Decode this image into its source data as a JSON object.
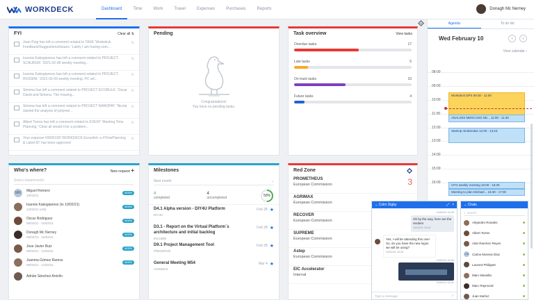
{
  "header": {
    "logo_text": "WORKDECK",
    "nav": [
      {
        "label": "Dashboard",
        "active": true
      },
      {
        "label": "Time",
        "active": false
      },
      {
        "label": "Work",
        "active": false
      },
      {
        "label": "Travel",
        "active": false
      },
      {
        "label": "Expenses",
        "active": false
      },
      {
        "label": "Purchases",
        "active": false
      },
      {
        "label": "Reports",
        "active": false
      }
    ],
    "user_name": "Donagh Mc Nerney"
  },
  "fyi": {
    "title": "FYI",
    "action": "Clear all ⇅",
    "items": [
      "Joan Puig has left a comment related to TASK 'Workdeck Feedback/Suggestions/Issues: 'Lately I am having som...",
      "Ioannis Kakogiannos has left a comment related to PROJECT SCALBIUR: '2021-02-08 weekly meeting...",
      "Ioannis Kakogiannos has left a comment related to PROJECT ROSSINI: '2021-02-09 weekly meeting. PC wil...",
      "Simona has left a comment related to PROJECT ECOBULK: 'Oscar David and Simona. The missing...",
      "Simona has left a comment related to PROJECT NANOPAT: 'Nicola started the analysis of polymer...",
      "Albert Torres has left a comment related to EVENT 'Meeting Time Planning: 'Clear all would it be a problem...",
      "Your expense #0000128 'WORKDECK Ecosolid+ a #TimePlanning & Label-ID' has been approved"
    ]
  },
  "pending": {
    "title": "Pending",
    "message_line1": "Congratulations!",
    "message_line2": "You have no pending tasks."
  },
  "tasks": {
    "title": "Task overview",
    "action": "View tasks",
    "rows": [
      {
        "label": "Overdue tasks",
        "count": "17",
        "fill": 0.55,
        "color": "#e53935"
      },
      {
        "label": "Late tasks",
        "count": "5",
        "fill": 0.12,
        "color": "#f9a825"
      },
      {
        "label": "On track tasks",
        "count": "10",
        "fill": 0.44,
        "color": "#7e3fbf"
      },
      {
        "label": "Future tasks",
        "count": "4",
        "fill": 0.09,
        "color": "#1e63d6"
      }
    ]
  },
  "whos": {
    "title": "Who's where?",
    "action": "New request",
    "search_placeholder": "Select departments",
    "people": [
      {
        "name": "Miguel Romero",
        "date": "10/02/21",
        "badge": "MR",
        "color": "#b7c6d9",
        "tag": "WORK"
      },
      {
        "name": "Ioannis Kakogiannos (to 10/02/21)",
        "date": "12/02/21 (AM)",
        "badge": "",
        "color": "#8a6e5a",
        "tag": "WORK"
      },
      {
        "name": "Oscar Rodriguez",
        "date": "05/02/21 - 10/02/21",
        "badge": "",
        "color": "#6b4c3b",
        "tag": "WORK"
      },
      {
        "name": "Donagh Mc Nerney",
        "date": "09/02/21 - 10/02/21",
        "badge": "",
        "color": "#3a2d28",
        "tag": "WORK"
      },
      {
        "name": "Jose Javier Ruiz",
        "date": "08/02/21 - 12/02/21",
        "badge": "",
        "color": "#7a5a48",
        "tag": "WORK"
      },
      {
        "name": "Juanma Gómez Ramos",
        "date": "09/02/21 - 12/02/21",
        "badge": "",
        "color": "#8d6f5e",
        "tag": "WORK"
      },
      {
        "name": "Adrián Sánchez Antolín",
        "date": "",
        "badge": "",
        "color": "#6e5b50",
        "tag": ""
      }
    ]
  },
  "milestones": {
    "title": "Milestones",
    "select_value": "Next month",
    "completed_num": "4",
    "completed_lbl": "completed",
    "uncompleted_num": "4",
    "uncompleted_lbl": "uncompleted",
    "percent": "50%",
    "percent_value": 0.5,
    "items": [
      {
        "title": "D4.1 Alpha version - DIY4U Platform",
        "sub": "DIY4U",
        "date": "Feb 28"
      },
      {
        "title": "D3.1 - Report on the Virtual Platform´s architecture and initial backlog",
        "sub": "INCUBIB",
        "date": "Feb 28"
      },
      {
        "title": "D9.1 Project Management Tool",
        "sub": "PRESERVE",
        "date": "Feb 28"
      },
      {
        "title": "General Meeting M54",
        "sub": "AGRIMAX",
        "date": "Mar 4"
      }
    ]
  },
  "redzone": {
    "title": "Red Zone",
    "items": [
      {
        "name": "PROMETHEUS",
        "sub": "European Commission",
        "count": "3"
      },
      {
        "name": "AGRIMAX",
        "sub": "European Commission",
        "count": ""
      },
      {
        "name": "RECOVER",
        "sub": "European Commission",
        "count": ""
      },
      {
        "name": "SUPREME",
        "sub": "European Commission",
        "count": ""
      },
      {
        "name": "Astep",
        "sub": "European Commission",
        "count": ""
      },
      {
        "name": "EIC Accelerator",
        "sub": "Internal",
        "count": ""
      }
    ]
  },
  "agenda": {
    "tab_agenda": "Agenda",
    "tab_todo": "To do list",
    "date": "Wed February 10",
    "view_calendar": "View calendar ›",
    "hours": [
      "08:00",
      "09:00",
      "10:00",
      "11:00",
      "12:00",
      "13:00",
      "14:00",
      "15:00",
      "16:00"
    ],
    "events": [
      {
        "label": "Workdeck DPS  09:30 - 11:00",
        "color": "#fcd45b"
      },
      {
        "label": "ANALISIS MERCADO NE...  11:00 - 11:30",
        "color": "#bfe0f6"
      },
      {
        "label": "StartUp Akobendas  12:00 - 13:15",
        "color": "#bfe0f6"
      },
      {
        "label": "CFO weekly meeting  16:00 - 16:30",
        "color": "#bfe0f6"
      },
      {
        "label": "Meeting to plan Michael...  16:30 - 17:00",
        "color": "#bfe0f6"
      }
    ]
  },
  "chat": {
    "name": "Colm Digby",
    "placeholder": "Type a message",
    "messages": [
      {
        "time": "10/02/21 10:40",
        "text": ""
      },
      {
        "time": "10/02/21 10:40",
        "text": "Oh by the way, here are the renders"
      },
      {
        "time": "10/02/21 10:40",
        "text": "Yes, I will be attending this one! So, do you have the new logos we will be using?"
      },
      {
        "time": "10/02/21 10:40",
        "text": ""
      },
      {
        "time": "10/02/21 10:41",
        "text": ""
      }
    ]
  },
  "chats": {
    "title": "Chats",
    "search_placeholder": "Search",
    "people": [
      {
        "name": "Alejandro Rosales",
        "badge": "",
        "color": "#8a6e5a"
      },
      {
        "name": "Albert Torres",
        "badge": "",
        "color": "#6b4c3b"
      },
      {
        "name": "Aldo Ramírez Reyes",
        "badge": "",
        "color": "#7a5a48"
      },
      {
        "name": "Carlos Moreira Díaz",
        "badge": "CM",
        "color": "#b7c6d9"
      },
      {
        "name": "Laurent Philippet",
        "badge": "",
        "color": "#5c4a40"
      },
      {
        "name": "Marc Mansilla",
        "badge": "",
        "color": "#8d6f5e"
      },
      {
        "name": "Marc Raymond",
        "badge": "",
        "color": "#3a2d28"
      },
      {
        "name": "Juan Muñoz",
        "badge": "",
        "color": "#6e5b50"
      }
    ]
  }
}
